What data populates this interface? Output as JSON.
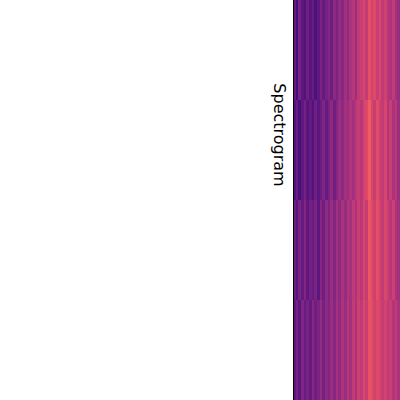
{
  "chart_data": {
    "type": "heatmap",
    "title": "Spectrogram",
    "color": "magma",
    "zlim": [
      0,
      1
    ],
    "tick_labels": false,
    "cells": [
      [
        0.3,
        0.22,
        0.35,
        0.28,
        0.25,
        0.33,
        0.27,
        0.31,
        0.24,
        0.29,
        0.36,
        0.3,
        0.34,
        0.38,
        0.32,
        0.4,
        0.36,
        0.42,
        0.39,
        0.45,
        0.41,
        0.47,
        0.5,
        0.44,
        0.52,
        0.55,
        0.58,
        0.53,
        0.62,
        0.57,
        0.6,
        0.55,
        0.59,
        0.52,
        0.56,
        0.5,
        0.48,
        0.53,
        0.46,
        0.42
      ],
      [
        0.26,
        0.31,
        0.23,
        0.29,
        0.34,
        0.27,
        0.3,
        0.25,
        0.33,
        0.28,
        0.32,
        0.37,
        0.3,
        0.35,
        0.41,
        0.33,
        0.38,
        0.44,
        0.4,
        0.46,
        0.43,
        0.49,
        0.45,
        0.51,
        0.54,
        0.5,
        0.57,
        0.6,
        0.66,
        0.58,
        0.54,
        0.61,
        0.56,
        0.53,
        0.58,
        0.49,
        0.55,
        0.47,
        0.51,
        0.44
      ],
      [
        0.32,
        0.27,
        0.35,
        0.3,
        0.38,
        0.29,
        0.34,
        0.31,
        0.36,
        0.28,
        0.39,
        0.33,
        0.41,
        0.36,
        0.43,
        0.38,
        0.45,
        0.4,
        0.47,
        0.42,
        0.49,
        0.46,
        0.52,
        0.48,
        0.55,
        0.51,
        0.58,
        0.54,
        0.64,
        0.6,
        0.56,
        0.62,
        0.57,
        0.53,
        0.59,
        0.55,
        0.5,
        0.56,
        0.48,
        0.45
      ],
      [
        0.29,
        0.34,
        0.28,
        0.37,
        0.31,
        0.35,
        0.3,
        0.39,
        0.33,
        0.36,
        0.42,
        0.34,
        0.4,
        0.37,
        0.44,
        0.39,
        0.46,
        0.41,
        0.48,
        0.43,
        0.5,
        0.45,
        0.53,
        0.47,
        0.56,
        0.52,
        0.59,
        0.55,
        0.63,
        0.61,
        0.57,
        0.6,
        0.58,
        0.54,
        0.57,
        0.52,
        0.55,
        0.49,
        0.53,
        0.47
      ]
    ]
  }
}
